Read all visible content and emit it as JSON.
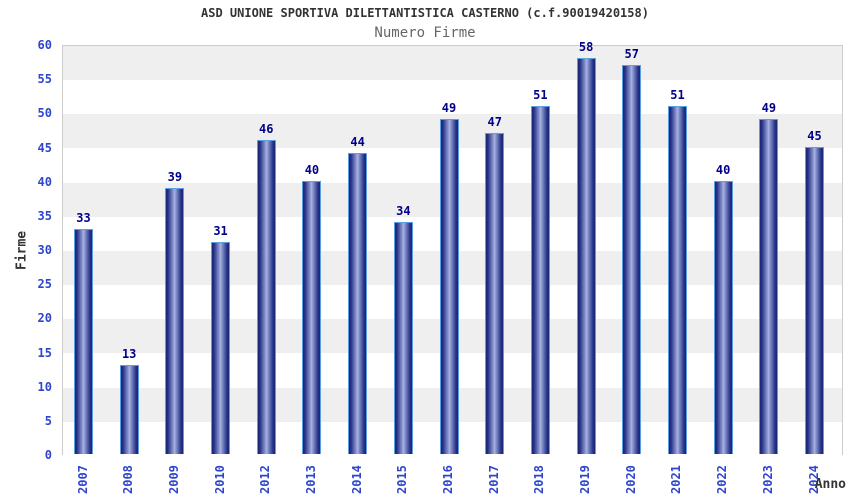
{
  "chart_data": {
    "type": "bar",
    "title": "ASD UNIONE SPORTIVA DILETTANTISTICA CASTERNO (c.f.90019420158)",
    "subtitle": "Numero Firme",
    "xlabel": "Anno",
    "ylabel": "Firme",
    "categories": [
      "2007",
      "2008",
      "2009",
      "2010",
      "2012",
      "2013",
      "2014",
      "2015",
      "2016",
      "2017",
      "2018",
      "2019",
      "2020",
      "2021",
      "2022",
      "2023",
      "2024"
    ],
    "values": [
      33,
      13,
      39,
      31,
      46,
      40,
      44,
      34,
      49,
      47,
      51,
      58,
      57,
      51,
      40,
      49,
      45
    ],
    "ylim": [
      0,
      60
    ],
    "ytick_step": 5,
    "legend": "none",
    "grid": "alternating-horizontal-bands",
    "colors": {
      "bar_dark": "#1a2470",
      "bar_mid": "#27338a",
      "bar_light": "#aeb9e6",
      "bar_edge": "#5b9fe0",
      "value_label": "#00008b",
      "tick_label": "#2e45cc",
      "band_gray": "#efefef",
      "band_white": "#ffffff",
      "plot_border": "#cccccc",
      "title_color": "#333333",
      "subtitle_color": "#666666"
    }
  }
}
